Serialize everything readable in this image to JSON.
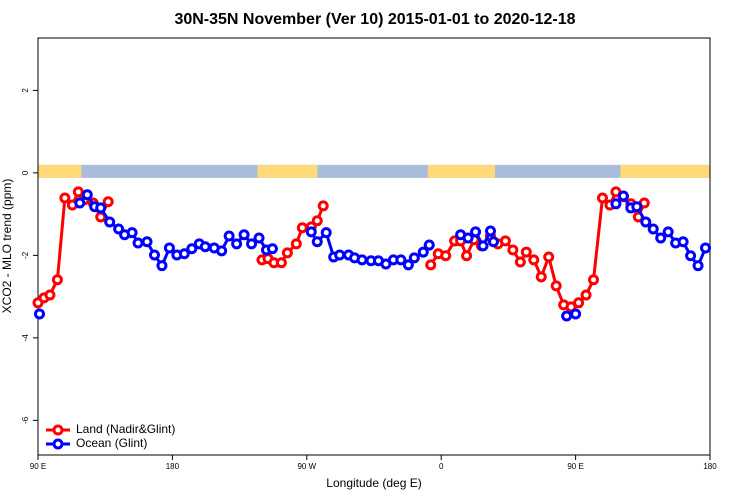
{
  "chart_data": {
    "type": "line",
    "title": "30N-35N November (Ver 10)   2015-01-01 to 2020-12-18",
    "x_label": "Longitude (deg E)",
    "y_label": "XCO2 - MLO trend (ppm)",
    "xlim": [
      90,
      540
    ],
    "ylim": [
      -6.84,
      3.27
    ],
    "xticks": [
      {
        "value": 90,
        "label": "90 E"
      },
      180,
      {
        "value": 270,
        "label": "90 W"
      },
      {
        "value": 360,
        "label": "0"
      },
      {
        "value": 450,
        "label": "90 E"
      },
      {
        "value": 540,
        "label": "180"
      }
    ],
    "yticks": [
      -6,
      -4,
      -2,
      0,
      2
    ],
    "legend": "bottomleft",
    "surface_strip": {
      "land_color": "#ffd97a",
      "ocean_color": "#a9bcdc",
      "land_ranges": [
        [
          90,
          119
        ],
        [
          237,
          277
        ],
        [
          351,
          396
        ],
        [
          480,
          540
        ]
      ]
    },
    "series": [
      {
        "name": "Land (Nadir&Glint)",
        "color": "#ff0000",
        "x": [
          90,
          94,
          98,
          103,
          108,
          113,
          117,
          121,
          127,
          132,
          137,
          null,
          240,
          244,
          248,
          253,
          257,
          263,
          267,
          273,
          277,
          281,
          null,
          353,
          358,
          363,
          369,
          373,
          377,
          382,
          387,
          393,
          398,
          403,
          408,
          413,
          417,
          422,
          427,
          432,
          437,
          442,
          447,
          452,
          457,
          462,
          468,
          473,
          477,
          482,
          487,
          492,
          496
        ],
        "values": [
          -3.15,
          -3.03,
          -2.96,
          -2.59,
          -0.61,
          -0.78,
          -0.46,
          -0.65,
          -0.73,
          -1.07,
          -0.7,
          null,
          -2.11,
          -2.08,
          -2.18,
          -2.18,
          -1.94,
          -1.72,
          -1.33,
          -1.31,
          -1.16,
          -0.8,
          null,
          -2.23,
          -1.96,
          -2.01,
          -1.65,
          -1.65,
          -2.01,
          -1.62,
          -1.77,
          -1.53,
          -1.72,
          -1.65,
          -1.87,
          -2.16,
          -1.92,
          -2.11,
          -2.52,
          -2.04,
          -2.74,
          -3.2,
          -3.25,
          -3.15,
          -2.96,
          -2.59,
          -0.61,
          -0.78,
          -0.46,
          -0.58,
          -0.75,
          -1.07,
          -0.73
        ]
      },
      {
        "name": "Ocean (Glint)",
        "color": "#0000ff",
        "x": [
          91,
          null,
          118,
          123,
          128,
          132,
          138,
          144,
          148,
          153,
          157,
          163,
          168,
          173,
          178,
          183,
          188,
          193,
          198,
          202,
          208,
          213,
          218,
          223,
          228,
          233,
          238,
          243,
          247,
          null,
          273,
          277,
          283,
          288,
          292,
          298,
          302,
          307,
          313,
          318,
          323,
          328,
          333,
          338,
          342,
          348,
          352,
          null,
          373,
          378,
          383,
          388,
          393,
          395,
          null,
          444,
          450,
          null,
          477,
          482,
          487,
          491,
          497,
          502,
          507,
          512,
          517,
          522,
          527,
          532,
          537
        ],
        "values": [
          -3.42,
          null,
          -0.73,
          -0.53,
          -0.82,
          -0.85,
          -1.19,
          -1.36,
          -1.5,
          -1.45,
          -1.7,
          -1.67,
          -1.99,
          -2.25,
          -1.82,
          -1.99,
          -1.96,
          -1.84,
          -1.72,
          -1.79,
          -1.82,
          -1.89,
          -1.53,
          -1.72,
          -1.5,
          -1.72,
          -1.58,
          -1.87,
          -1.84,
          null,
          -1.43,
          -1.67,
          -1.45,
          -2.04,
          -1.99,
          -1.99,
          -2.06,
          -2.11,
          -2.13,
          -2.13,
          -2.21,
          -2.11,
          -2.11,
          -2.23,
          -2.06,
          -1.92,
          -1.75,
          null,
          -1.5,
          -1.58,
          -1.43,
          -1.77,
          -1.41,
          -1.67,
          null,
          -3.47,
          -3.42,
          null,
          -0.75,
          -0.56,
          -0.85,
          -0.82,
          -1.19,
          -1.36,
          -1.58,
          -1.43,
          -1.7,
          -1.67,
          -2.01,
          -2.25,
          -1.82
        ]
      }
    ]
  }
}
